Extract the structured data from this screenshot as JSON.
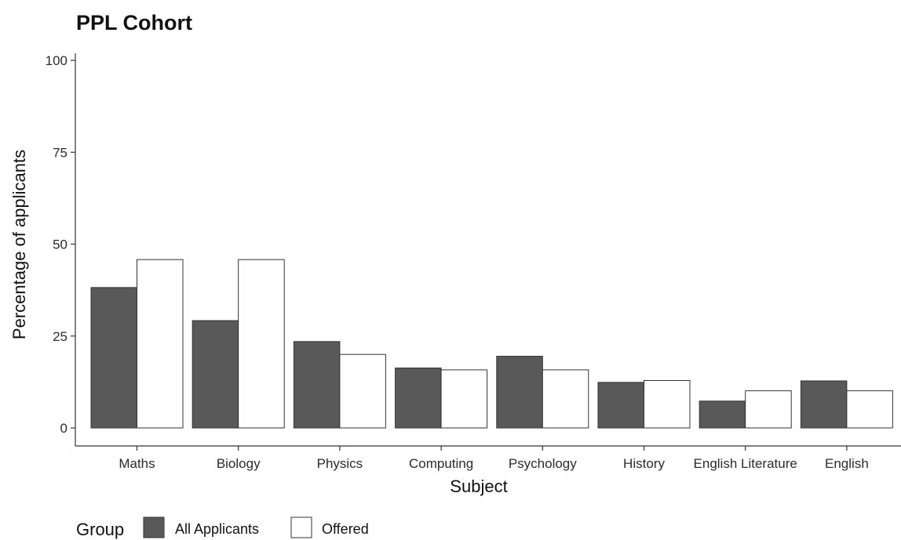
{
  "chart_data": {
    "type": "bar",
    "title": "PPL Cohort",
    "xlabel": "Subject",
    "ylabel": "Percentage of applicants",
    "ylim": [
      0,
      100
    ],
    "yticks": [
      "0",
      "25",
      "50",
      "75",
      "100"
    ],
    "categories": [
      "Maths",
      "Biology",
      "Physics",
      "Computing",
      "Psychology",
      "History",
      "English Literature",
      "English"
    ],
    "series": [
      {
        "name": "All Applicants",
        "color": "#595959",
        "values": [
          38.2,
          29.2,
          23.5,
          16.3,
          19.5,
          12.4,
          7.3,
          12.8
        ]
      },
      {
        "name": "Offered",
        "color": "#ffffff",
        "values": [
          45.8,
          45.8,
          20.0,
          15.8,
          15.8,
          12.9,
          10.1,
          10.1
        ]
      }
    ],
    "grid": false,
    "legend": {
      "title": "Group",
      "position": "bottom-left"
    }
  }
}
